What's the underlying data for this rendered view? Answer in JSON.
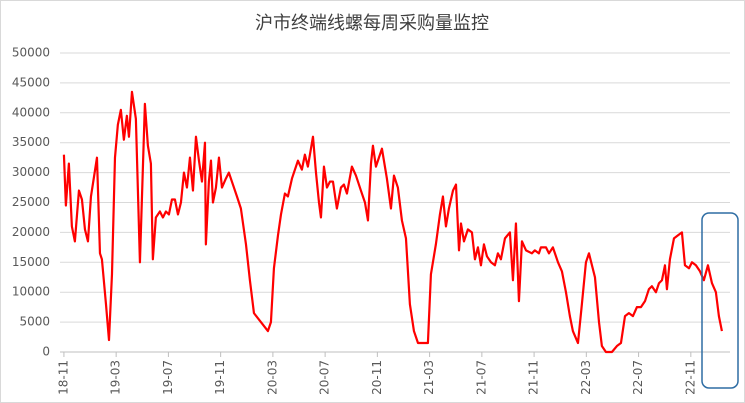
{
  "chart_data": {
    "type": "line",
    "title": "沪市终端线螺每周采购量监控",
    "x": [
      0,
      0.15,
      0.38,
      0.61,
      0.84,
      1.15,
      1.38,
      1.61,
      1.84,
      2.07,
      2.53,
      2.76,
      2.91,
      3.22,
      3.45,
      3.68,
      3.91,
      4.13,
      4.36,
      4.59,
      4.82,
      4.98,
      5.21,
      5.51,
      5.82,
      6.2,
      6.43,
      6.66,
      6.81,
      7.04,
      7.35,
      7.58,
      7.81,
      8.04,
      8.27,
      8.5,
      8.73,
      8.96,
      9.19,
      9.42,
      9.65,
      9.88,
      10.11,
      10.34,
      10.57,
      10.8,
      10.87,
      11.1,
      11.26,
      11.41,
      11.64,
      11.87,
      12.1,
      12.4,
      12.63,
      12.94,
      13.25,
      13.55,
      13.94,
      14.24,
      14.55,
      15.62,
      15.85,
      16.08,
      16.39,
      16.62,
      16.92,
      17.15,
      17.46,
      17.92,
      18.22,
      18.45,
      18.68,
      19.07,
      19.3,
      19.53,
      19.68,
      19.91,
      20.14,
      20.37,
      20.6,
      20.9,
      21.21,
      21.44,
      21.67,
      22.05,
      22.36,
      22.74,
      23.05,
      23.28,
      23.51,
      23.66,
      23.89,
      24.12,
      24.35,
      24.73,
      25.04,
      25.27,
      25.57,
      25.88,
      26.19,
      26.49,
      26.8,
      27.11,
      27.87,
      28.1,
      28.48,
      28.79,
      29.02,
      29.25,
      29.48,
      29.79,
      30.02,
      30.25,
      30.4,
      30.63,
      30.93,
      31.24,
      31.47,
      31.7,
      31.93,
      32.16,
      32.39,
      32.7,
      33,
      33.23,
      33.46,
      33.77,
      34.15,
      34.38,
      34.61,
      34.84,
      35.07,
      35.38,
      35.83,
      36.06,
      36.37,
      36.52,
      36.91,
      37.14,
      37.44,
      37.83,
      38.13,
      38.44,
      38.74,
      38.97,
      39.36,
      39.66,
      39.97,
      40.2,
      40.66,
      40.97,
      41.19,
      41.5,
      41.96,
      42.34,
      42.65,
      42.96,
      43.26,
      43.57,
      43.87,
      44.18,
      44.49,
      44.79,
      45.02,
      45.33,
      45.56,
      45.79,
      46.02,
      46.17,
      46.4,
      46.71,
      47.01,
      47.32,
      47.55,
      47.86,
      48.09,
      48.39,
      48.7,
      49,
      49.31,
      49.62,
      49.92,
      50.15,
      50.38
    ],
    "series": [
      {
        "color": "#ff0000",
        "values": [
          33000,
          24500,
          31500,
          21000,
          18500,
          27000,
          25500,
          20500,
          18500,
          26000,
          32500,
          16500,
          15500,
          8000,
          2000,
          13000,
          32500,
          38000,
          40500,
          35500,
          39500,
          36000,
          43500,
          39000,
          15000,
          41500,
          34500,
          31500,
          15500,
          22500,
          23500,
          22500,
          23500,
          23000,
          25500,
          25500,
          23000,
          25000,
          30000,
          27500,
          32500,
          27000,
          36000,
          32000,
          28500,
          35000,
          18000,
          28500,
          32000,
          25000,
          27500,
          32500,
          27500,
          29000,
          30000,
          28000,
          26000,
          24000,
          18000,
          12000,
          6500,
          3500,
          5000,
          14000,
          19500,
          23000,
          26500,
          26000,
          29000,
          32000,
          30500,
          33000,
          31000,
          36000,
          30000,
          25000,
          22500,
          31000,
          27500,
          28500,
          28500,
          24000,
          27500,
          28000,
          26500,
          31000,
          29500,
          27000,
          25000,
          22000,
          31500,
          34500,
          31000,
          32500,
          34000,
          29000,
          24000,
          29500,
          27500,
          22000,
          19000,
          8000,
          3500,
          1500,
          1500,
          13000,
          18000,
          23000,
          26000,
          21000,
          24000,
          27000,
          28000,
          17000,
          21500,
          18500,
          20500,
          20000,
          15500,
          17500,
          14500,
          18000,
          16000,
          15000,
          14500,
          16500,
          15500,
          19000,
          20000,
          12000,
          21500,
          8500,
          18500,
          17000,
          16500,
          17000,
          16500,
          17500,
          17500,
          16500,
          17500,
          15000,
          13500,
          10000,
          6000,
          3500,
          1500,
          8000,
          15000,
          16500,
          12500,
          5000,
          1000,
          0,
          0,
          1000,
          1500,
          6000,
          6500,
          6000,
          7500,
          7500,
          8500,
          10500,
          11000,
          10000,
          11500,
          12000,
          14500,
          10500,
          15500,
          19000,
          19500,
          20000,
          14500,
          14000,
          15000,
          14500,
          13500,
          12000,
          14500,
          11500,
          10000,
          6000,
          3500
        ]
      }
    ],
    "xlim": [
      -0.3,
      51
    ],
    "xticks": [
      {
        "value": 0,
        "label": "18-11"
      },
      {
        "value": 4,
        "label": "19-03"
      },
      {
        "value": 8,
        "label": "19-07"
      },
      {
        "value": 12,
        "label": "19-11"
      },
      {
        "value": 16,
        "label": "20-03"
      },
      {
        "value": 20,
        "label": "20-07"
      },
      {
        "value": 24,
        "label": "20-11"
      },
      {
        "value": 28,
        "label": "21-03"
      },
      {
        "value": 32,
        "label": "21-07"
      },
      {
        "value": 36,
        "label": "21-11"
      },
      {
        "value": 40,
        "label": "22-03"
      },
      {
        "value": 44,
        "label": "22-07"
      },
      {
        "value": 48,
        "label": "22-11"
      }
    ],
    "ylim": [
      0,
      50000
    ],
    "yticks": [
      0,
      5000,
      10000,
      15000,
      20000,
      25000,
      30000,
      35000,
      40000,
      45000,
      50000
    ],
    "grid": true
  }
}
